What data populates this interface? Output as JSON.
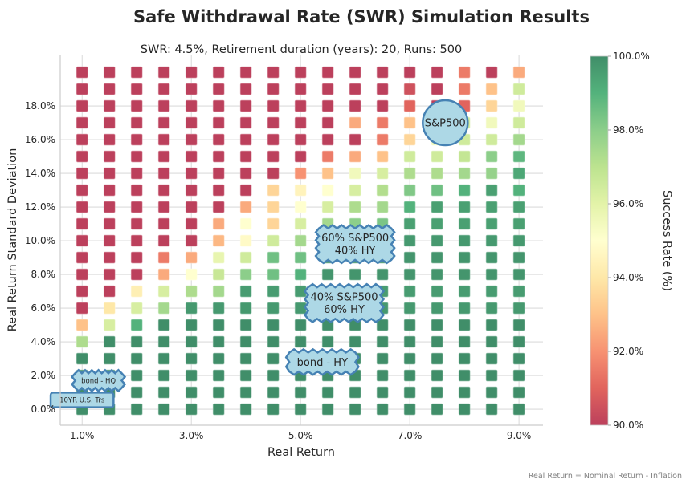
{
  "chart_data": {
    "type": "heatmap",
    "title": "Safe Withdrawal Rate (SWR) Simulation Results",
    "subtitle": "SWR: 4.5%, Retirement duration (years): 20, Runs: 500",
    "xlabel": "Real Return",
    "ylabel": "Real Return Standard Deviation",
    "x": [
      1.0,
      1.5,
      2.0,
      2.5,
      3.0,
      3.5,
      4.0,
      4.5,
      5.0,
      5.5,
      6.0,
      6.5,
      7.0,
      7.5,
      8.0,
      8.5,
      9.0
    ],
    "y_rows_top_to_bottom": [
      20,
      19,
      18,
      17,
      16,
      15,
      14,
      13,
      12,
      11,
      10,
      9,
      8,
      7,
      6,
      5,
      4,
      3,
      2,
      1,
      0
    ],
    "xlim": [
      0.6,
      9.44
    ],
    "ylim": [
      -0.95,
      21.05
    ],
    "x_ticks": [
      "1.0%",
      "3.0%",
      "5.0%",
      "7.0%",
      "9.0%"
    ],
    "x_tick_values": [
      1,
      3,
      5,
      7,
      9
    ],
    "y_ticks": [
      "0.0%",
      "2.0%",
      "4.0%",
      "6.0%",
      "8.0%",
      "10.0%",
      "12.0%",
      "14.0%",
      "16.0%",
      "18.0%"
    ],
    "y_tick_values": [
      0,
      2,
      4,
      6,
      8,
      10,
      12,
      14,
      16,
      18
    ],
    "grid": true,
    "colormap": "RdYlGn",
    "color_range": [
      90,
      100
    ],
    "colorbar": {
      "label": "Success Rate (%)",
      "ticks": [
        "90.0%",
        "92.0%",
        "94.0%",
        "96.0%",
        "98.0%",
        "100.0%"
      ],
      "tick_values": [
        90,
        92,
        94,
        96,
        98,
        100
      ]
    },
    "success_rate": [
      [
        90,
        90,
        90,
        90,
        90,
        90,
        90,
        90,
        90,
        90,
        90,
        90,
        90,
        90,
        91.5,
        90,
        92.5
      ],
      [
        90,
        90,
        90,
        90,
        90,
        90,
        90,
        90,
        90,
        90,
        90,
        90,
        90.5,
        90,
        91.5,
        93,
        96.5
      ],
      [
        90,
        90,
        90,
        90,
        90,
        90,
        90,
        90,
        90,
        90,
        90,
        90,
        91,
        90,
        91,
        93.5,
        95.5
      ],
      [
        90,
        90,
        90,
        90,
        90,
        90,
        90,
        90,
        90,
        90,
        92.5,
        91.5,
        93,
        94.5,
        96.5,
        95.5,
        96.5
      ],
      [
        90,
        90,
        90,
        90,
        90,
        90,
        90,
        90,
        90,
        90,
        90,
        91.5,
        93.5,
        95.5,
        96.5,
        96.5,
        97.5
      ],
      [
        90,
        90,
        90,
        90,
        90,
        90,
        90,
        90,
        90,
        91.5,
        92.5,
        93,
        96.5,
        96.5,
        96.8,
        98,
        98.8
      ],
      [
        90,
        90,
        90,
        90,
        90,
        90,
        90,
        90,
        92,
        93,
        95.5,
        96.3,
        97.3,
        97.3,
        97.5,
        97.8,
        99.3
      ],
      [
        90,
        90,
        90,
        90,
        90,
        90,
        90,
        93.5,
        94.5,
        95,
        96.3,
        97.2,
        98.2,
        98.5,
        99,
        99.5,
        99
      ],
      [
        90,
        90,
        90,
        90,
        90,
        90,
        92.5,
        93.5,
        95,
        96.3,
        97.3,
        97.5,
        99,
        99.5,
        99.5,
        99.5,
        99.5
      ],
      [
        90,
        90,
        90,
        90,
        90,
        92.5,
        95,
        93.5,
        96.3,
        97.5,
        98,
        98.3,
        99.5,
        99.5,
        99.5,
        99.5,
        99.5
      ],
      [
        90,
        90,
        90,
        90,
        90,
        92.8,
        94.8,
        96.5,
        97.5,
        98.5,
        99.7,
        99.7,
        99.7,
        99.7,
        99.7,
        99.7,
        99.7
      ],
      [
        90,
        90,
        90,
        91.5,
        92.5,
        95.8,
        96.5,
        98.5,
        98.5,
        99.8,
        99.8,
        99.8,
        99.8,
        99.8,
        99.8,
        99.8,
        99.8
      ],
      [
        90,
        90,
        90,
        92.5,
        95,
        96.7,
        98,
        98.5,
        99,
        99.8,
        99.8,
        99.8,
        99.8,
        99.8,
        99.8,
        99.8,
        99.8
      ],
      [
        90,
        90,
        94.3,
        96.3,
        97.3,
        97.5,
        99.6,
        99.6,
        99.6,
        99.6,
        99.6,
        99.6,
        99.6,
        99.6,
        99.6,
        99.6,
        99.6
      ],
      [
        90,
        94,
        96.3,
        97.5,
        99.7,
        99.7,
        99.7,
        99.7,
        99.7,
        99.7,
        99.7,
        99.7,
        99.7,
        99.7,
        99.7,
        99.7,
        99.7
      ],
      [
        93,
        96.3,
        99,
        100,
        100,
        100,
        100,
        100,
        100,
        100,
        100,
        100,
        100,
        100,
        100,
        100,
        100
      ],
      [
        97.3,
        100,
        100,
        100,
        100,
        100,
        100,
        100,
        100,
        100,
        100,
        100,
        100,
        100,
        100,
        100,
        100
      ],
      [
        100,
        100,
        100,
        100,
        100,
        100,
        100,
        100,
        100,
        100,
        100,
        100,
        100,
        100,
        100,
        100,
        100
      ],
      [
        100,
        100,
        100,
        100,
        100,
        100,
        100,
        100,
        100,
        100,
        100,
        100,
        100,
        100,
        100,
        100,
        100
      ],
      [
        100,
        100,
        100,
        100,
        100,
        100,
        100,
        100,
        100,
        100,
        100,
        100,
        100,
        100,
        100,
        100,
        100
      ],
      [
        100,
        100,
        100,
        100,
        100,
        100,
        100,
        100,
        100,
        100,
        100,
        100,
        100,
        100,
        100,
        100,
        100
      ]
    ],
    "annotations": [
      {
        "text": "S&P500",
        "x": 7.65,
        "y": 17.0,
        "shape": "circle"
      },
      {
        "text": "60% S&P500\n40% HY",
        "x": 6.0,
        "y": 9.8,
        "shape": "sawtooth"
      },
      {
        "text": "40% S&P500\n60% HY",
        "x": 5.8,
        "y": 6.3,
        "shape": "sawtooth"
      },
      {
        "text": "bond - HY",
        "x": 5.4,
        "y": 2.8,
        "shape": "sawtooth"
      },
      {
        "text": "bond - HQ",
        "x": 1.3,
        "y": 1.7,
        "shape": "sawtooth"
      },
      {
        "text": "10YR U.S. Trs",
        "x": 1.0,
        "y": 0.55,
        "shape": "round"
      }
    ],
    "annotation_fill": "#add8e6",
    "annotation_edge": "#4682b4",
    "footnote": "Real Return = Nominal Return - Inflation"
  }
}
